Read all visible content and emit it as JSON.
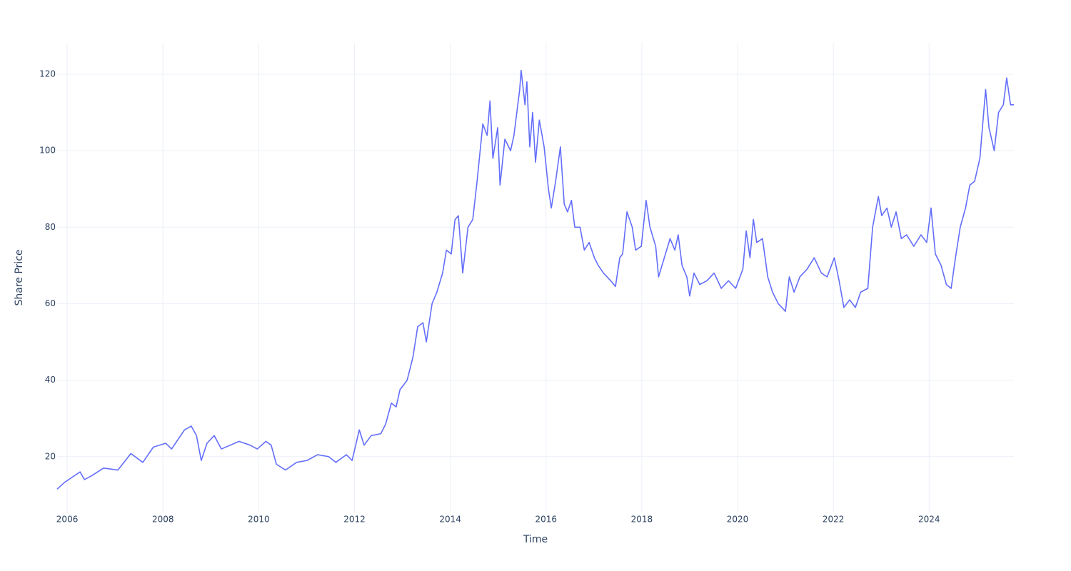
{
  "chart_data": {
    "type": "line",
    "x_label": "Time",
    "y_label": "Share Price",
    "color": "#636efa",
    "grid": true,
    "xlim": [
      2005.79,
      2025.77
    ],
    "ylim": [
      5.4,
      128.2
    ],
    "xticks": [
      2006,
      2008,
      2010,
      2012,
      2014,
      2016,
      2018,
      2020,
      2022,
      2024
    ],
    "yticks": [
      20,
      40,
      60,
      80,
      100,
      120
    ],
    "x": [
      2005.79,
      2005.94,
      2006.09,
      2006.27,
      2006.36,
      2006.51,
      2006.76,
      2007.06,
      2007.33,
      2007.58,
      2007.8,
      2008.06,
      2008.18,
      2008.45,
      2008.59,
      2008.7,
      2008.8,
      2008.92,
      2009.07,
      2009.22,
      2009.59,
      2009.82,
      2009.97,
      2010.15,
      2010.26,
      2010.37,
      2010.56,
      2010.79,
      2011.01,
      2011.23,
      2011.46,
      2011.61,
      2011.83,
      2011.95,
      2012.1,
      2012.2,
      2012.35,
      2012.55,
      2012.65,
      2012.77,
      2012.87,
      2012.95,
      2013.1,
      2013.22,
      2013.32,
      2013.43,
      2013.5,
      2013.62,
      2013.72,
      2013.84,
      2013.92,
      2014.02,
      2014.1,
      2014.17,
      2014.26,
      2014.37,
      2014.47,
      2014.56,
      2014.68,
      2014.77,
      2014.83,
      2014.89,
      2014.99,
      2015.04,
      2015.14,
      2015.26,
      2015.33,
      2015.45,
      2015.48,
      2015.56,
      2015.6,
      2015.66,
      2015.72,
      2015.78,
      2015.86,
      2015.96,
      2016.05,
      2016.11,
      2016.2,
      2016.3,
      2016.38,
      2016.45,
      2016.53,
      2016.6,
      2016.71,
      2016.8,
      2016.9,
      2017.01,
      2017.09,
      2017.2,
      2017.35,
      2017.45,
      2017.54,
      2017.6,
      2017.69,
      2017.8,
      2017.87,
      2017.99,
      2018.09,
      2018.17,
      2018.29,
      2018.35,
      2018.47,
      2018.59,
      2018.69,
      2018.76,
      2018.84,
      2018.94,
      2019.0,
      2019.09,
      2019.21,
      2019.36,
      2019.51,
      2019.66,
      2019.81,
      2019.96,
      2020.11,
      2020.18,
      2020.26,
      2020.33,
      2020.4,
      2020.52,
      2020.63,
      2020.73,
      2020.85,
      2021.0,
      2021.08,
      2021.18,
      2021.3,
      2021.45,
      2021.6,
      2021.75,
      2021.87,
      2022.02,
      2022.12,
      2022.22,
      2022.34,
      2022.46,
      2022.57,
      2022.72,
      2022.82,
      2022.94,
      2023.01,
      2023.12,
      2023.21,
      2023.31,
      2023.42,
      2023.53,
      2023.68,
      2023.83,
      2023.95,
      2024.04,
      2024.13,
      2024.25,
      2024.36,
      2024.46,
      2024.55,
      2024.65,
      2024.76,
      2024.85,
      2024.95,
      2025.06,
      2025.18,
      2025.25,
      2025.36,
      2025.45,
      2025.55,
      2025.62,
      2025.7,
      2025.77
    ],
    "values": [
      11.5,
      13.2,
      14.5,
      16,
      14,
      15,
      17,
      16.5,
      20.8,
      18.5,
      22.5,
      23.5,
      22,
      27,
      28,
      25.5,
      19,
      23.5,
      25.5,
      22,
      24,
      23,
      22,
      24,
      23,
      18,
      16.5,
      18.5,
      19,
      20.5,
      20,
      18.5,
      20.5,
      19,
      27,
      23,
      25.5,
      26,
      28.5,
      34,
      33,
      37.5,
      40,
      46,
      54,
      55,
      50,
      60,
      63,
      68,
      74,
      73,
      82,
      83,
      68,
      80,
      82,
      92,
      107,
      104,
      113,
      98,
      106,
      91,
      103,
      100,
      104,
      116,
      121,
      112,
      118,
      101,
      110,
      97,
      108,
      101,
      90,
      85,
      92,
      101,
      86,
      84,
      87,
      80,
      80,
      74,
      76,
      72,
      70,
      68,
      66,
      64.5,
      72,
      73,
      84,
      80,
      74,
      75,
      87,
      80,
      75,
      67,
      72,
      77,
      74,
      78,
      70,
      67,
      62,
      68,
      65,
      66,
      68,
      64,
      66,
      64,
      69,
      79,
      72,
      82,
      76,
      77,
      67,
      63,
      60,
      58,
      67,
      63,
      67,
      69,
      72,
      68,
      67,
      72,
      66,
      59,
      61,
      59,
      63,
      64,
      80,
      88,
      83,
      85,
      80,
      84,
      77,
      78,
      75,
      78,
      76,
      85,
      73,
      70,
      65,
      64,
      72,
      80,
      85,
      91,
      92,
      98,
      116,
      106,
      100,
      110,
      112,
      119,
      112,
      112
    ]
  }
}
